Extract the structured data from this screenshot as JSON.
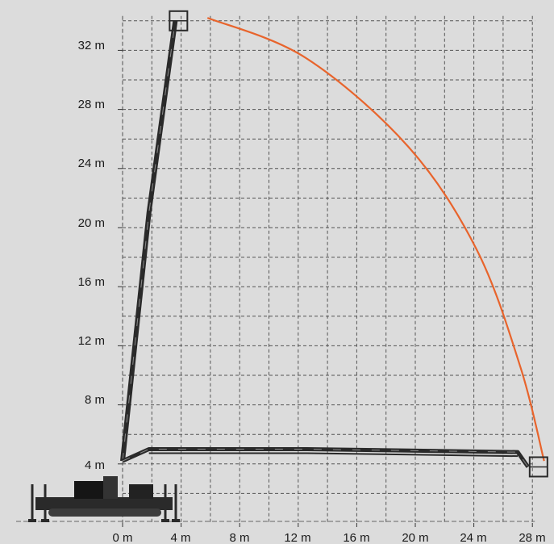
{
  "diagram": {
    "x_tick_labels": [
      "0 m",
      "4 m",
      "8 m",
      "12 m",
      "16 m",
      "20 m",
      "24 m",
      "28 m"
    ],
    "y_tick_labels": [
      "4 m",
      "8 m",
      "12 m",
      "16 m",
      "20 m",
      "24 m",
      "28 m",
      "32 m"
    ],
    "x_ticks_m": [
      0,
      4,
      8,
      12,
      16,
      20,
      24,
      28
    ],
    "y_ticks_m": [
      4,
      8,
      12,
      16,
      20,
      24,
      28,
      32
    ],
    "grid_step_m": 2,
    "x_range_m": [
      0,
      28
    ],
    "y_range_m": [
      0,
      34
    ],
    "reach_envelope": {
      "color": "#e8642c",
      "points_m": [
        [
          5.8,
          34.2
        ],
        [
          12.5,
          31.5
        ],
        [
          19.5,
          25.5
        ],
        [
          24.2,
          18.5
        ],
        [
          27.2,
          10.5
        ],
        [
          28.8,
          4.2
        ]
      ]
    },
    "machine_color": "#2a2a2a",
    "ground_line_color": "#666666",
    "vertical_position": {
      "boom": [
        [
          0.0,
          4.2
        ],
        [
          1.8,
          21.0
        ],
        [
          3.6,
          34.0
        ]
      ],
      "basket": [
        3.6,
        34.0
      ]
    },
    "horizontal_position": {
      "boom": [
        [
          0.0,
          4.2
        ],
        [
          1.8,
          5.0
        ],
        [
          12.5,
          5.0
        ],
        [
          27.0,
          4.8
        ],
        [
          27.7,
          3.8
        ]
      ],
      "basket": [
        28.2,
        3.8
      ]
    }
  }
}
